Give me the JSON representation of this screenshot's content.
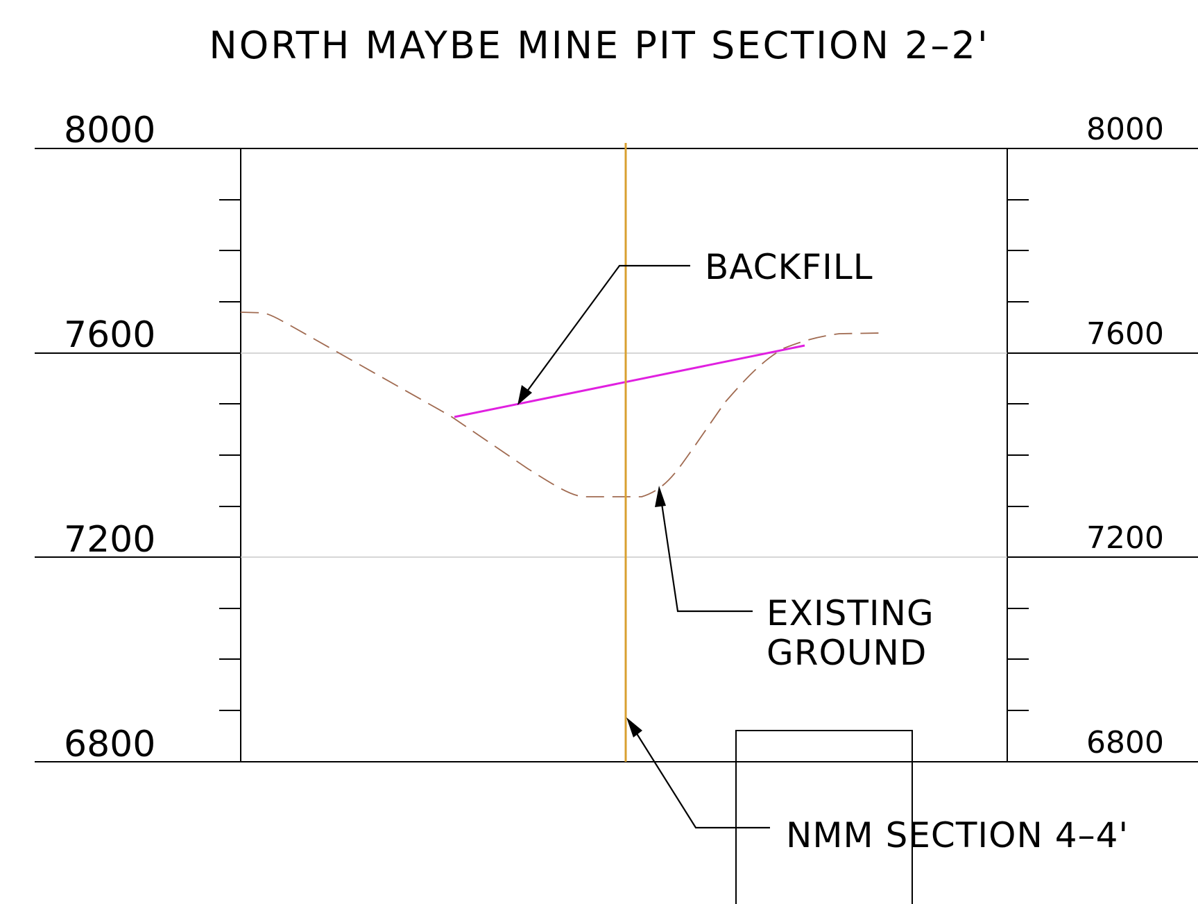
{
  "title": "NORTH MAYBE MINE PIT SECTION 2–2'",
  "elevation_labels": {
    "left": [
      "8000",
      "7600",
      "7200",
      "6800"
    ],
    "right": [
      "8000",
      "7600",
      "7200",
      "6800"
    ]
  },
  "callouts": {
    "backfill": "BACKFILL",
    "existing_ground_line1": "EXISTING",
    "existing_ground_line2": "GROUND",
    "nmm_section": "NMM SECTION 4–4'"
  },
  "colors": {
    "backfill_line": "#e020e0",
    "existing_ground_line": "#a06a50",
    "section_line": "#d9a030",
    "frame": "#000000",
    "grid": "#c8c8c8"
  }
}
